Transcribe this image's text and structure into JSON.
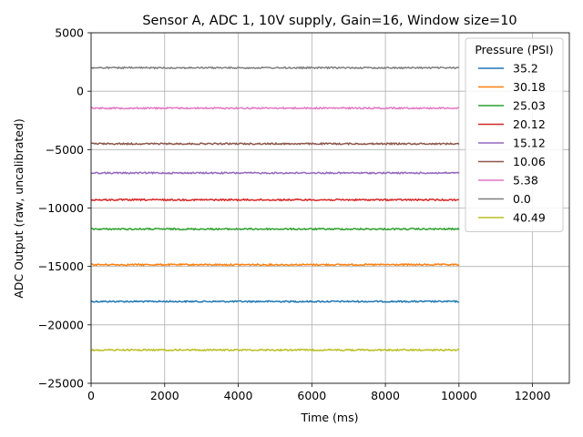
{
  "chart_data": {
    "type": "line",
    "title": "Sensor A, ADC 1, 10V supply, Gain=16, Window size=10",
    "xlabel": "Time (ms)",
    "ylabel": "ADC Output (raw, uncalibrated)",
    "xlim": [
      0,
      13000
    ],
    "ylim": [
      -25000,
      5000
    ],
    "xticks": [
      0,
      2000,
      4000,
      6000,
      8000,
      10000,
      12000
    ],
    "xtick_labels": [
      "0",
      "2000",
      "4000",
      "6000",
      "8000",
      "10000",
      "12000"
    ],
    "yticks": [
      5000,
      0,
      -5000,
      -10000,
      -15000,
      -20000,
      -25000
    ],
    "ytick_labels": [
      "5000",
      "0",
      "−5000",
      "−10000",
      "−15000",
      "−20000",
      "−25000"
    ],
    "grid": true,
    "legend_title": "Pressure (PSI)",
    "legend_position": "top-right",
    "series": [
      {
        "name": "35.2",
        "color": "#1f77b4",
        "x": [
          0,
          10000
        ],
        "values": [
          -18000,
          -18000
        ]
      },
      {
        "name": "30.18",
        "color": "#ff7f0e",
        "x": [
          0,
          10000
        ],
        "values": [
          -14850,
          -14850
        ]
      },
      {
        "name": "25.03",
        "color": "#2ca02c",
        "x": [
          0,
          10000
        ],
        "values": [
          -11800,
          -11800
        ]
      },
      {
        "name": "20.12",
        "color": "#d62728",
        "x": [
          0,
          10000
        ],
        "values": [
          -9300,
          -9300
        ]
      },
      {
        "name": "15.12",
        "color": "#9467bd",
        "x": [
          0,
          10000
        ],
        "values": [
          -7000,
          -7000
        ]
      },
      {
        "name": "10.06",
        "color": "#8c564b",
        "x": [
          0,
          10000
        ],
        "values": [
          -4500,
          -4500
        ]
      },
      {
        "name": "5.38",
        "color": "#e377c2",
        "x": [
          0,
          10000
        ],
        "values": [
          -1450,
          -1450
        ]
      },
      {
        "name": "0.0",
        "color": "#7f7f7f",
        "x": [
          0,
          10000
        ],
        "values": [
          2000,
          2000
        ]
      },
      {
        "name": "40.49",
        "color": "#bcbd22",
        "x": [
          0,
          10000
        ],
        "values": [
          -22150,
          -22150
        ]
      }
    ]
  }
}
